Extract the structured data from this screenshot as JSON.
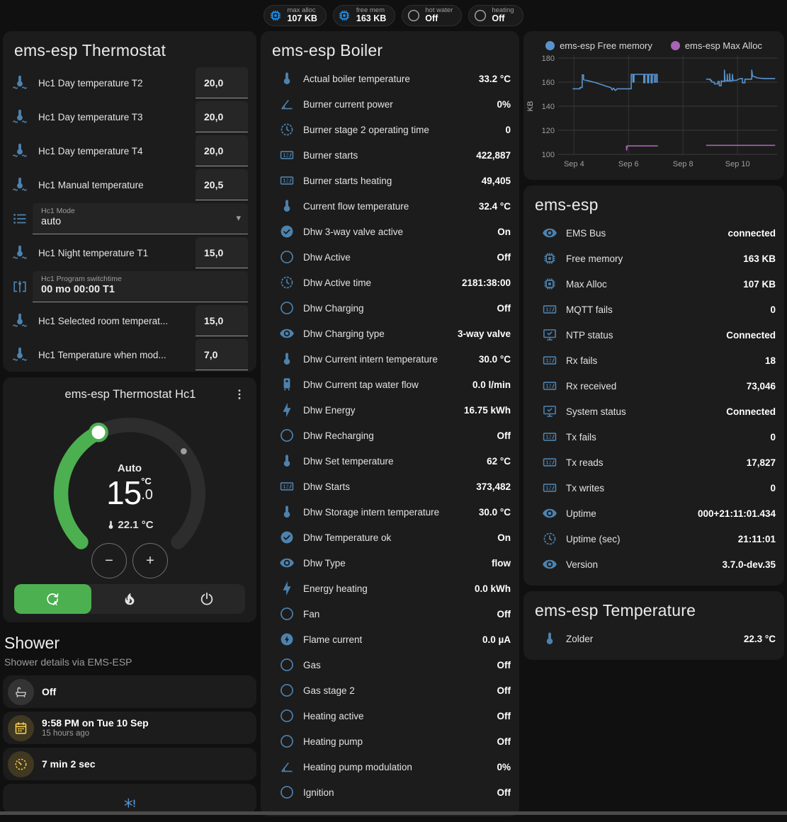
{
  "colors": {
    "background": "#101010",
    "card": "#1c1c1c",
    "icon_blue": "#4d82ae",
    "chip_blue": "#2196f3",
    "accent_green": "#4caf50",
    "amber": "#fdd253",
    "free_memory_line": "#5893ce",
    "max_alloc_line": "#a763b5"
  },
  "header": {
    "chips": [
      {
        "icon": "memory",
        "color": "blue",
        "label": "max alloc",
        "value": "107 KB"
      },
      {
        "icon": "memory",
        "color": "blue",
        "label": "free mem",
        "value": "163 KB"
      },
      {
        "icon": "circle-outline",
        "color": "gray",
        "label": "hot water",
        "value": "Off"
      },
      {
        "icon": "circle-outline",
        "color": "gray",
        "label": "heating",
        "value": "Off"
      }
    ]
  },
  "thermostat_card": {
    "title": "ems-esp Thermostat",
    "rows": [
      {
        "type": "number",
        "icon": "thermometer-waves",
        "label": "Hc1 Day temperature T2",
        "value": "20,0"
      },
      {
        "type": "number",
        "icon": "thermometer-waves",
        "label": "Hc1 Day temperature T3",
        "value": "20,0"
      },
      {
        "type": "number",
        "icon": "thermometer-waves",
        "label": "Hc1 Day temperature T4",
        "value": "20,0"
      },
      {
        "type": "number",
        "icon": "thermometer-waves",
        "label": "Hc1 Manual temperature",
        "value": "20,5"
      },
      {
        "type": "select",
        "icon": "list",
        "label": "Hc1 Mode",
        "value": "auto"
      },
      {
        "type": "number",
        "icon": "thermometer-waves",
        "label": "Hc1 Night temperature T1",
        "value": "15,0"
      },
      {
        "type": "text",
        "icon": "switchtime",
        "label": "Hc1 Program switchtime",
        "value": "00 mo 00:00 T1"
      },
      {
        "type": "number",
        "icon": "thermometer-waves",
        "label": "Hc1 Selected room temperat...",
        "value": "15,0"
      },
      {
        "type": "number",
        "icon": "thermometer-waves",
        "label": "Hc1 Temperature when mod...",
        "value": "7,0"
      }
    ]
  },
  "dial_card": {
    "title": "ems-esp Thermostat Hc1",
    "mode_label": "Auto",
    "target_int": "15",
    "target_frac": ".0",
    "target_unit": "°C",
    "current_temp": "22.1 °C",
    "minus": "−",
    "plus": "+",
    "modes": [
      {
        "name": "auto",
        "icon": "auto-mode",
        "active": true
      },
      {
        "name": "heat",
        "icon": "flame",
        "active": false
      },
      {
        "name": "off",
        "icon": "power",
        "active": false
      }
    ]
  },
  "shower": {
    "title": "Shower",
    "subtitle": "Shower details via EMS-ESP",
    "cards": [
      {
        "icon": "bathtub",
        "style": "gray",
        "primary": "Off",
        "secondary": ""
      },
      {
        "icon": "calendar",
        "style": "amber",
        "primary": "9:58 PM on Tue 10 Sep",
        "secondary": "15 hours ago"
      },
      {
        "icon": "timer",
        "style": "amber",
        "primary": "7 min 2 sec",
        "secondary": ""
      },
      {
        "icon": "snowflake-alert",
        "style": "center",
        "primary": "",
        "secondary": ""
      }
    ]
  },
  "boiler_card": {
    "title": "ems-esp Boiler",
    "rows": [
      {
        "icon": "thermometer",
        "label": "Actual boiler temperature",
        "value": "33.2 °C"
      },
      {
        "icon": "angle",
        "label": "Burner current power",
        "value": "0%"
      },
      {
        "icon": "clock",
        "label": "Burner stage 2 operating time",
        "value": "0"
      },
      {
        "icon": "counter",
        "label": "Burner starts",
        "value": "422,887"
      },
      {
        "icon": "counter",
        "label": "Burner starts heating",
        "value": "49,405"
      },
      {
        "icon": "thermometer",
        "label": "Current flow temperature",
        "value": "32.4 °C"
      },
      {
        "icon": "check-circle",
        "label": "Dhw 3-way valve active",
        "value": "On"
      },
      {
        "icon": "circle-outline",
        "label": "Dhw Active",
        "value": "Off"
      },
      {
        "icon": "clock",
        "label": "Dhw Active time",
        "value": "2181:38:00"
      },
      {
        "icon": "circle-outline",
        "label": "Dhw Charging",
        "value": "Off"
      },
      {
        "icon": "eye",
        "label": "Dhw Charging type",
        "value": "3-way valve"
      },
      {
        "icon": "thermometer",
        "label": "Dhw Current intern temperature",
        "value": "30.0 °C"
      },
      {
        "icon": "water-boiler",
        "label": "Dhw Current tap water flow",
        "value": "0.0 l/min"
      },
      {
        "icon": "flash",
        "label": "Dhw Energy",
        "value": "16.75 kWh"
      },
      {
        "icon": "circle-outline",
        "label": "Dhw Recharging",
        "value": "Off"
      },
      {
        "icon": "thermometer",
        "label": "Dhw Set temperature",
        "value": "62 °C"
      },
      {
        "icon": "counter",
        "label": "Dhw Starts",
        "value": "373,482"
      },
      {
        "icon": "thermometer",
        "label": "Dhw Storage intern temperature",
        "value": "30.0 °C"
      },
      {
        "icon": "check-circle",
        "label": "Dhw Temperature ok",
        "value": "On"
      },
      {
        "icon": "eye",
        "label": "Dhw Type",
        "value": "flow"
      },
      {
        "icon": "flash",
        "label": "Energy heating",
        "value": "0.0 kWh"
      },
      {
        "icon": "circle-outline",
        "label": "Fan",
        "value": "Off"
      },
      {
        "icon": "flash-circle",
        "label": "Flame current",
        "value": "0.0 µA"
      },
      {
        "icon": "circle-outline",
        "label": "Gas",
        "value": "Off"
      },
      {
        "icon": "circle-outline",
        "label": "Gas stage 2",
        "value": "Off"
      },
      {
        "icon": "circle-outline",
        "label": "Heating active",
        "value": "Off"
      },
      {
        "icon": "circle-outline",
        "label": "Heating pump",
        "value": "Off"
      },
      {
        "icon": "angle",
        "label": "Heating pump modulation",
        "value": "0%"
      },
      {
        "icon": "circle-outline",
        "label": "Ignition",
        "value": "Off"
      }
    ]
  },
  "chart_data": {
    "type": "line",
    "title": "",
    "xlabel": "",
    "ylabel": "KB",
    "grid": true,
    "legend_position": "top",
    "x_range": [
      3.55,
      11.45
    ],
    "y_range": [
      100,
      180
    ],
    "y_ticks": [
      100,
      120,
      140,
      160,
      180
    ],
    "x_ticks": [
      {
        "label": "Sep 4",
        "x": 4
      },
      {
        "label": "Sep 6",
        "x": 6
      },
      {
        "label": "Sep 8",
        "x": 8
      },
      {
        "label": "Sep 10",
        "x": 10
      }
    ],
    "series": [
      {
        "name": "ems-esp Free memory",
        "color": "#5893ce",
        "segments": [
          [
            [
              3.95,
              154.5
            ],
            [
              4.22,
              154.5
            ],
            [
              4.22,
              155.5
            ],
            [
              4.3,
              155.5
            ],
            [
              4.3,
              166
            ],
            [
              4.35,
              166
            ],
            [
              4.35,
              162
            ],
            [
              4.55,
              161
            ],
            [
              4.8,
              159.5
            ],
            [
              5.0,
              158
            ],
            [
              5.2,
              156.5
            ],
            [
              5.35,
              155.5
            ],
            [
              5.4,
              153.5
            ],
            [
              5.45,
              155
            ],
            [
              5.52,
              153
            ],
            [
              5.58,
              154.5
            ],
            [
              6.1,
              154.5
            ],
            [
              6.1,
              166.5
            ],
            [
              6.16,
              166.5
            ],
            [
              6.16,
              160
            ],
            [
              6.2,
              160
            ],
            [
              6.2,
              166.5
            ],
            [
              6.56,
              166.5
            ],
            [
              6.56,
              159.5
            ],
            [
              6.6,
              159.5
            ],
            [
              6.6,
              166.5
            ],
            [
              6.7,
              166.5
            ],
            [
              6.7,
              159.5
            ],
            [
              6.74,
              159.5
            ],
            [
              6.74,
              166.5
            ],
            [
              6.83,
              166.5
            ],
            [
              6.83,
              159.5
            ],
            [
              6.87,
              159.5
            ],
            [
              6.87,
              166.5
            ],
            [
              6.95,
              166.5
            ],
            [
              6.95,
              160
            ],
            [
              7.0,
              160
            ],
            [
              7.0,
              166.5
            ],
            [
              7.05,
              166.5
            ],
            [
              7.05,
              159.5
            ]
          ],
          [
            [
              8.85,
              162.5
            ],
            [
              9.0,
              162.5
            ],
            [
              9.0,
              161.5
            ],
            [
              9.05,
              161.5
            ],
            [
              9.05,
              160
            ],
            [
              9.15,
              160
            ],
            [
              9.15,
              158.5
            ],
            [
              9.28,
              158.5
            ],
            [
              9.28,
              160.5
            ],
            [
              9.33,
              160.5
            ],
            [
              9.33,
              157
            ],
            [
              9.4,
              157
            ],
            [
              9.4,
              161
            ],
            [
              9.52,
              160.5
            ],
            [
              9.52,
              170
            ],
            [
              9.54,
              161
            ],
            [
              9.62,
              161
            ],
            [
              9.62,
              166.5
            ],
            [
              9.64,
              161
            ],
            [
              9.71,
              161
            ],
            [
              9.71,
              167
            ],
            [
              9.73,
              161
            ],
            [
              9.81,
              161
            ],
            [
              9.81,
              166.5
            ],
            [
              9.83,
              161.5
            ],
            [
              9.95,
              161.5
            ],
            [
              10.05,
              162.5
            ],
            [
              10.12,
              163
            ],
            [
              10.18,
              163
            ],
            [
              10.18,
              159.5
            ],
            [
              10.27,
              159.5
            ],
            [
              10.27,
              162.5
            ],
            [
              10.52,
              162.5
            ],
            [
              10.52,
              170
            ],
            [
              10.55,
              165
            ],
            [
              10.62,
              164.5
            ],
            [
              10.72,
              163.5
            ],
            [
              10.95,
              163
            ],
            [
              11.38,
              163
            ]
          ]
        ]
      },
      {
        "name": "ems-esp Max Alloc",
        "color": "#a763b5",
        "segments": [
          [
            [
              5.92,
              107
            ],
            [
              5.93,
              103.5
            ],
            [
              5.95,
              107
            ],
            [
              7.08,
              107
            ]
          ],
          [
            [
              8.85,
              107.5
            ],
            [
              11.38,
              107.5
            ]
          ]
        ]
      }
    ]
  },
  "emsesp_card": {
    "title": "ems-esp",
    "rows": [
      {
        "icon": "eye",
        "label": "EMS Bus",
        "value": "connected"
      },
      {
        "icon": "memory",
        "label": "Free memory",
        "value": "163 KB"
      },
      {
        "icon": "memory",
        "label": "Max Alloc",
        "value": "107 KB"
      },
      {
        "icon": "counter",
        "label": "MQTT fails",
        "value": "0"
      },
      {
        "icon": "monitor-check",
        "label": "NTP status",
        "value": "Connected"
      },
      {
        "icon": "counter",
        "label": "Rx fails",
        "value": "18"
      },
      {
        "icon": "counter",
        "label": "Rx received",
        "value": "73,046"
      },
      {
        "icon": "monitor-check",
        "label": "System status",
        "value": "Connected"
      },
      {
        "icon": "counter",
        "label": "Tx fails",
        "value": "0"
      },
      {
        "icon": "counter",
        "label": "Tx reads",
        "value": "17,827"
      },
      {
        "icon": "counter",
        "label": "Tx writes",
        "value": "0"
      },
      {
        "icon": "eye",
        "label": "Uptime",
        "value": "000+21:11:01.434"
      },
      {
        "icon": "clock",
        "label": "Uptime (sec)",
        "value": "21:11:01"
      },
      {
        "icon": "eye",
        "label": "Version",
        "value": "3.7.0-dev.35"
      }
    ]
  },
  "temperature_card": {
    "title": "ems-esp Temperature",
    "rows": [
      {
        "icon": "thermometer",
        "label": "Zolder",
        "value": "22.3 °C"
      }
    ]
  }
}
